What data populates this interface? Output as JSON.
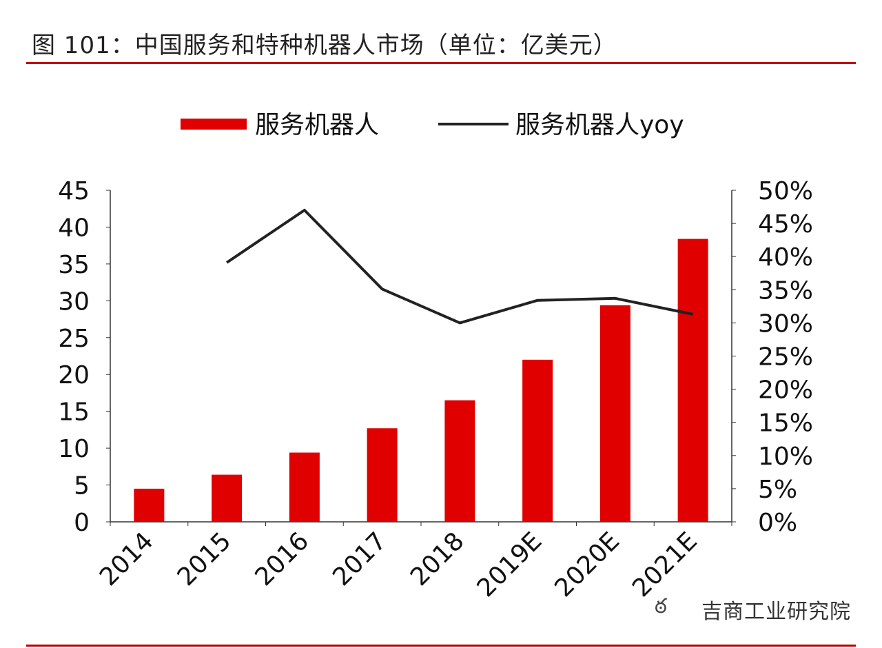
{
  "title": "图 101：中国服务和特种机器人市场（单位：亿美元）",
  "watermark": "吉商工业研究院",
  "colors": {
    "bar": "#e00000",
    "line": "#222222",
    "rule": "#c00000"
  },
  "chart_data": {
    "type": "bar+line",
    "categories": [
      "2014",
      "2015",
      "2016",
      "2017",
      "2018",
      "2019E",
      "2020E",
      "2021E"
    ],
    "series": [
      {
        "name": "服务机器人",
        "type": "bar",
        "axis": "left",
        "values": [
          4.5,
          6.4,
          9.4,
          12.7,
          16.5,
          22.0,
          29.4,
          38.4
        ]
      },
      {
        "name": "服务机器人yoy",
        "type": "line",
        "axis": "right",
        "values": [
          null,
          39.1,
          47.0,
          35.1,
          30.0,
          33.4,
          33.7,
          31.3
        ]
      }
    ],
    "left_axis": {
      "ylim": [
        0,
        45
      ],
      "ticks": [
        "0",
        "5",
        "10",
        "15",
        "20",
        "25",
        "30",
        "35",
        "40",
        "45"
      ]
    },
    "right_axis": {
      "ylim": [
        0,
        50
      ],
      "ticks": [
        "0%",
        "5%",
        "10%",
        "15%",
        "20%",
        "25%",
        "30%",
        "35%",
        "40%",
        "45%",
        "50%"
      ]
    },
    "legend": "top",
    "grid": false
  }
}
